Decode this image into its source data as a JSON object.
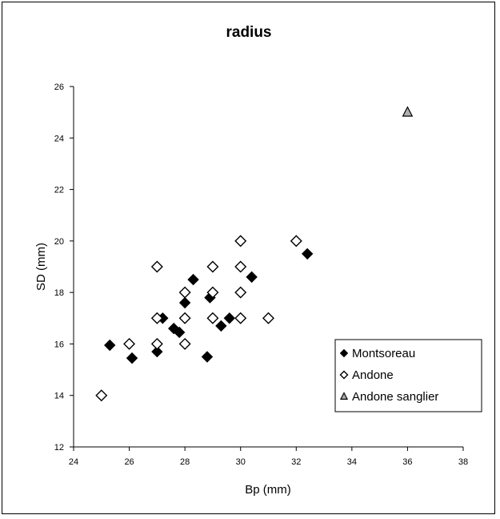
{
  "chart_data": {
    "type": "scatter",
    "title": "radius",
    "xlabel": "Bp (mm)",
    "ylabel": "SD (mm)",
    "xlim": [
      24,
      38
    ],
    "ylim": [
      12,
      26
    ],
    "x_ticks": [
      "24",
      "26",
      "28",
      "30",
      "32",
      "34",
      "36",
      "38"
    ],
    "y_ticks": [
      "12",
      "14",
      "16",
      "18",
      "20",
      "22",
      "24",
      "26"
    ],
    "grid": false,
    "legend_position": "bottom-right",
    "series": [
      {
        "name": "Montsoreau",
        "marker": "filled-diamond",
        "color": "#000000",
        "points": [
          {
            "x": 25.3,
            "y": 15.95
          },
          {
            "x": 26.1,
            "y": 15.45
          },
          {
            "x": 27.0,
            "y": 15.7
          },
          {
            "x": 27.2,
            "y": 17.0
          },
          {
            "x": 27.6,
            "y": 16.6
          },
          {
            "x": 27.8,
            "y": 16.45
          },
          {
            "x": 28.0,
            "y": 17.6
          },
          {
            "x": 28.3,
            "y": 18.5
          },
          {
            "x": 28.8,
            "y": 15.5
          },
          {
            "x": 28.9,
            "y": 17.8
          },
          {
            "x": 29.3,
            "y": 16.7
          },
          {
            "x": 29.6,
            "y": 17.0
          },
          {
            "x": 30.4,
            "y": 18.6
          },
          {
            "x": 32.4,
            "y": 19.5
          }
        ]
      },
      {
        "name": "Andone",
        "marker": "open-diamond",
        "color": "#000000",
        "points": [
          {
            "x": 25.0,
            "y": 14.0
          },
          {
            "x": 26.0,
            "y": 16.0
          },
          {
            "x": 27.0,
            "y": 16.0
          },
          {
            "x": 27.0,
            "y": 17.0
          },
          {
            "x": 27.0,
            "y": 19.0
          },
          {
            "x": 28.0,
            "y": 16.0
          },
          {
            "x": 28.0,
            "y": 17.0
          },
          {
            "x": 28.0,
            "y": 18.0
          },
          {
            "x": 29.0,
            "y": 17.0
          },
          {
            "x": 29.0,
            "y": 18.0
          },
          {
            "x": 29.0,
            "y": 19.0
          },
          {
            "x": 30.0,
            "y": 17.0
          },
          {
            "x": 30.0,
            "y": 18.0
          },
          {
            "x": 30.0,
            "y": 19.0
          },
          {
            "x": 30.0,
            "y": 20.0
          },
          {
            "x": 31.0,
            "y": 17.0
          },
          {
            "x": 32.0,
            "y": 20.0
          }
        ]
      },
      {
        "name": "Andone sanglier",
        "marker": "gray-triangle",
        "color": "#b0b0b0",
        "points": [
          {
            "x": 36.0,
            "y": 25.0
          }
        ]
      }
    ]
  }
}
